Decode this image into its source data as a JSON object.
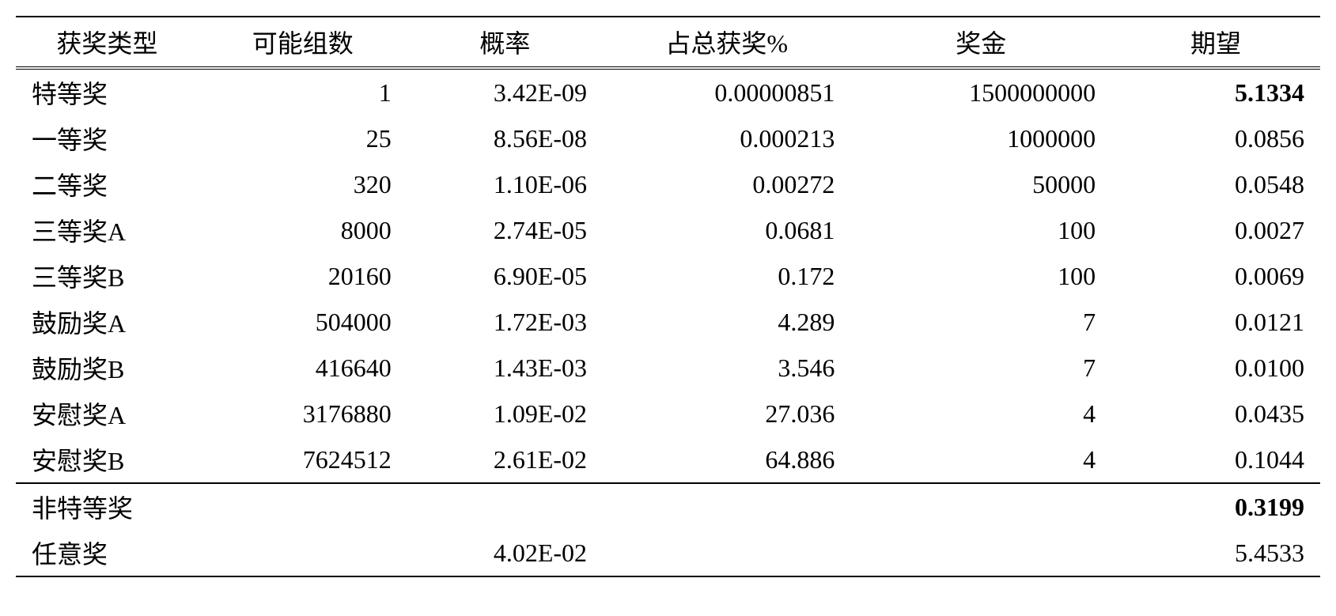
{
  "table": {
    "columns": [
      "获奖类型",
      "可能组数",
      "概率",
      "占总获奖%",
      "奖金",
      "期望"
    ],
    "column_align": [
      "left",
      "right",
      "right",
      "right",
      "right",
      "right"
    ],
    "header_fontsize": 32,
    "cell_fontsize": 32,
    "border_color": "#000000",
    "background_color": "#ffffff",
    "text_color": "#000000",
    "col_widths_pct": [
      14,
      16,
      15,
      19,
      20,
      16
    ],
    "rows": [
      {
        "cells": [
          "特等奖",
          "1",
          "3.42E-09",
          "0.00000851",
          "1500000000",
          "5.1334"
        ],
        "bold_cols": [
          5
        ]
      },
      {
        "cells": [
          "一等奖",
          "25",
          "8.56E-08",
          "0.000213",
          "1000000",
          "0.0856"
        ],
        "bold_cols": []
      },
      {
        "cells": [
          "二等奖",
          "320",
          "1.10E-06",
          "0.00272",
          "50000",
          "0.0548"
        ],
        "bold_cols": []
      },
      {
        "cells": [
          "三等奖A",
          "8000",
          "2.74E-05",
          "0.0681",
          "100",
          "0.0027"
        ],
        "bold_cols": []
      },
      {
        "cells": [
          "三等奖B",
          "20160",
          "6.90E-05",
          "0.172",
          "100",
          "0.0069"
        ],
        "bold_cols": []
      },
      {
        "cells": [
          "鼓励奖A",
          "504000",
          "1.72E-03",
          "4.289",
          "7",
          "0.0121"
        ],
        "bold_cols": []
      },
      {
        "cells": [
          "鼓励奖B",
          "416640",
          "1.43E-03",
          "3.546",
          "7",
          "0.0100"
        ],
        "bold_cols": []
      },
      {
        "cells": [
          "安慰奖A",
          "3176880",
          "1.09E-02",
          "27.036",
          "4",
          "0.0435"
        ],
        "bold_cols": []
      },
      {
        "cells": [
          "安慰奖B",
          "7624512",
          "2.61E-02",
          "64.886",
          "4",
          "0.1044"
        ],
        "bold_cols": []
      }
    ],
    "summary_rows": [
      {
        "cells": [
          "非特等奖",
          "",
          "",
          "",
          "",
          "0.3199"
        ],
        "bold_cols": [
          5
        ]
      },
      {
        "cells": [
          "任意奖",
          "",
          "4.02E-02",
          "",
          "",
          "5.4533"
        ],
        "bold_cols": []
      }
    ]
  }
}
